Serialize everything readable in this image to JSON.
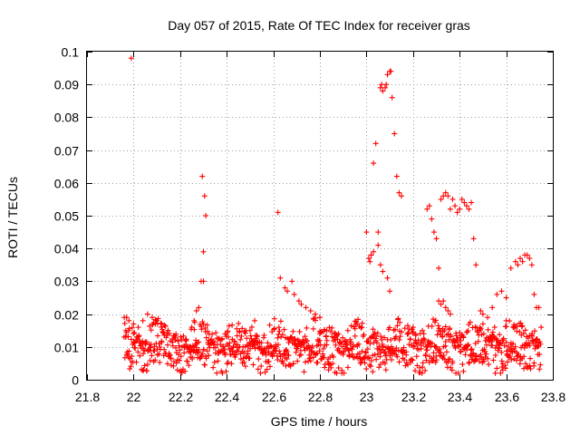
{
  "chart_data": {
    "type": "scatter",
    "title": "Day 057 of 2015, Rate Of TEC Index for receiver gras",
    "xlabel": "GPS time / hours",
    "ylabel": "ROTI / TECUs",
    "xlim": [
      21.8,
      23.8
    ],
    "ylim": [
      0,
      0.1
    ],
    "grid": true,
    "marker": "+",
    "color": "#ff0000",
    "x_ticks": [
      "21.8",
      "22",
      "22.2",
      "22.4",
      "22.6",
      "22.8",
      "23",
      "23.2",
      "23.4",
      "23.6",
      "23.8"
    ],
    "y_ticks": [
      "0",
      "0.01",
      "0.02",
      "0.03",
      "0.04",
      "0.05",
      "0.06",
      "0.07",
      "0.08",
      "0.09",
      "0.1"
    ],
    "series": [
      {
        "name": "gras",
        "x": [
          21.99,
          22.295,
          22.305,
          22.31,
          22.3,
          22.29,
          22.3,
          22.28,
          22.27,
          22.26,
          22.25,
          22.62,
          22.63,
          22.65,
          22.66,
          22.68,
          22.69,
          22.71,
          22.72,
          22.74,
          22.76,
          22.78,
          22.8,
          23.0,
          23.01,
          23.015,
          23.02,
          23.03,
          23.04,
          23.05,
          23.06,
          23.065,
          23.07,
          23.08,
          23.085,
          23.09,
          23.1,
          23.105,
          23.11,
          23.12,
          23.13,
          23.14,
          23.15,
          23.06,
          23.07,
          23.09,
          23.1,
          23.02,
          23.03,
          23.05,
          23.26,
          23.27,
          23.28,
          23.29,
          23.3,
          23.31,
          23.32,
          23.33,
          23.34,
          23.35,
          23.36,
          23.37,
          23.38,
          23.39,
          23.4,
          23.41,
          23.42,
          23.43,
          23.44,
          23.45,
          23.46,
          23.47,
          23.31,
          23.32,
          23.33,
          23.34,
          23.35,
          23.36,
          23.49,
          23.5,
          23.52,
          23.54,
          23.56,
          23.58,
          23.6,
          23.62,
          23.64,
          23.65,
          23.66,
          23.67,
          23.68,
          23.69,
          23.7,
          23.71,
          23.72,
          23.73,
          23.74,
          23.75,
          21.96,
          21.97,
          21.98,
          22.0,
          22.02,
          22.04,
          22.06,
          22.08,
          22.1,
          22.12,
          22.5,
          22.52,
          22.88,
          22.92,
          22.96,
          22.98,
          23.2,
          23.24,
          23.5,
          23.55,
          23.6,
          23.63
        ]
      }
    ]
  }
}
